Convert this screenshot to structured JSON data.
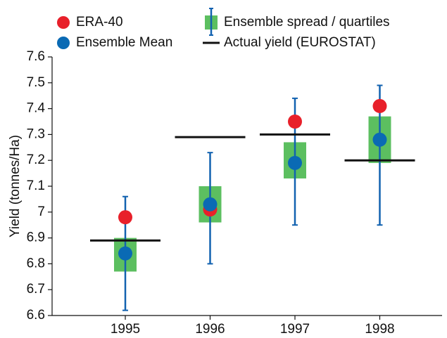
{
  "chart_data": {
    "type": "ensemble",
    "ylabel": "Yield (tonnes/Ha)",
    "categories": [
      "1995",
      "1996",
      "1997",
      "1998"
    ],
    "series": [
      {
        "name": "ERA-40",
        "kind": "dot",
        "color": "#e8202a",
        "values": [
          6.98,
          7.01,
          7.35,
          7.41
        ]
      },
      {
        "name": "Ensemble Mean",
        "kind": "dot",
        "color": "#0a6ab4",
        "values": [
          6.84,
          7.03,
          7.19,
          7.28
        ]
      },
      {
        "name": "Ensemble spread / quartiles",
        "kind": "box",
        "color": "#5cbf60",
        "whisker_color": "#1262b0",
        "min": [
          6.62,
          6.8,
          6.95,
          6.95
        ],
        "q1": [
          6.77,
          6.96,
          7.13,
          7.19
        ],
        "q3": [
          6.9,
          7.1,
          7.27,
          7.37
        ],
        "max": [
          7.06,
          7.23,
          7.44,
          7.49
        ]
      },
      {
        "name": "Actual yield (EUROSTAT)",
        "kind": "hline",
        "color": "#111111",
        "values": [
          6.89,
          7.29,
          7.3,
          7.2
        ]
      }
    ],
    "ylim": [
      6.6,
      7.6
    ],
    "yticks": [
      6.6,
      6.7,
      6.8,
      6.9,
      7,
      7.1,
      7.2,
      7.3,
      7.4,
      7.5,
      7.6
    ],
    "grid": false
  }
}
